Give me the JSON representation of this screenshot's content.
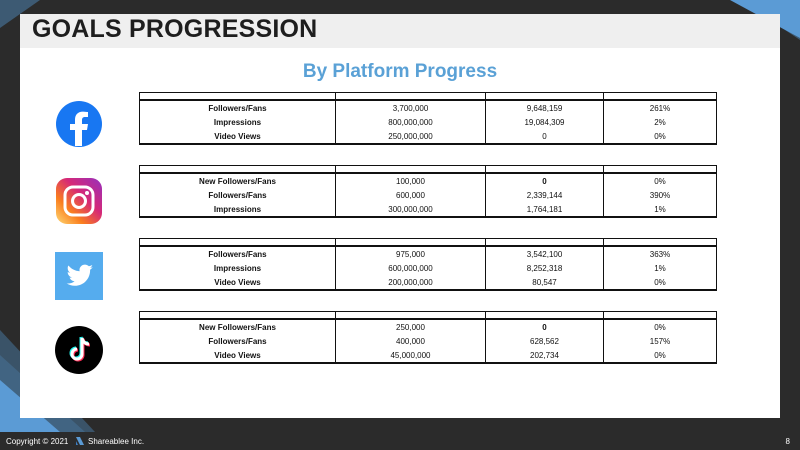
{
  "title": "GOALS PROGRESSION",
  "subtitle": "By Platform Progress",
  "platforms": [
    {
      "name": "facebook-icon",
      "rows": [
        {
          "metric": "Followers/Fans",
          "goal": "3,700,000",
          "actual": "9,648,159",
          "percent": "261%",
          "actual_bold": false
        },
        {
          "metric": "Impressions",
          "goal": "800,000,000",
          "actual": "19,084,309",
          "percent": "2%",
          "actual_bold": false
        },
        {
          "metric": "Video Views",
          "goal": "250,000,000",
          "actual": "0",
          "percent": "0%",
          "actual_bold": false
        }
      ]
    },
    {
      "name": "instagram-icon",
      "rows": [
        {
          "metric": "New Followers/Fans",
          "goal": "100,000",
          "actual": "0",
          "percent": "0%",
          "actual_bold": true
        },
        {
          "metric": "Followers/Fans",
          "goal": "600,000",
          "actual": "2,339,144",
          "percent": "390%",
          "actual_bold": false
        },
        {
          "metric": "Impressions",
          "goal": "300,000,000",
          "actual": "1,764,181",
          "percent": "1%",
          "actual_bold": false
        }
      ]
    },
    {
      "name": "twitter-icon",
      "rows": [
        {
          "metric": "Followers/Fans",
          "goal": "975,000",
          "actual": "3,542,100",
          "percent": "363%",
          "actual_bold": false
        },
        {
          "metric": "Impressions",
          "goal": "600,000,000",
          "actual": "8,252,318",
          "percent": "1%",
          "actual_bold": false
        },
        {
          "metric": "Video Views",
          "goal": "200,000,000",
          "actual": "80,547",
          "percent": "0%",
          "actual_bold": false
        }
      ]
    },
    {
      "name": "tiktok-icon",
      "rows": [
        {
          "metric": "New Followers/Fans",
          "goal": "250,000",
          "actual": "0",
          "percent": "0%",
          "actual_bold": true
        },
        {
          "metric": "Followers/Fans",
          "goal": "400,000",
          "actual": "628,562",
          "percent": "157%",
          "actual_bold": false
        },
        {
          "metric": "Video Views",
          "goal": "45,000,000",
          "actual": "202,734",
          "percent": "0%",
          "actual_bold": false
        }
      ]
    }
  ],
  "footer": {
    "copyright": "Copyright © 2021",
    "company": "Shareablee Inc.",
    "page": "8"
  },
  "colors": {
    "accent": "#5aa1d6",
    "facebook": "#1877f2",
    "twitter": "#55acee",
    "background": "#2b2b2b"
  }
}
